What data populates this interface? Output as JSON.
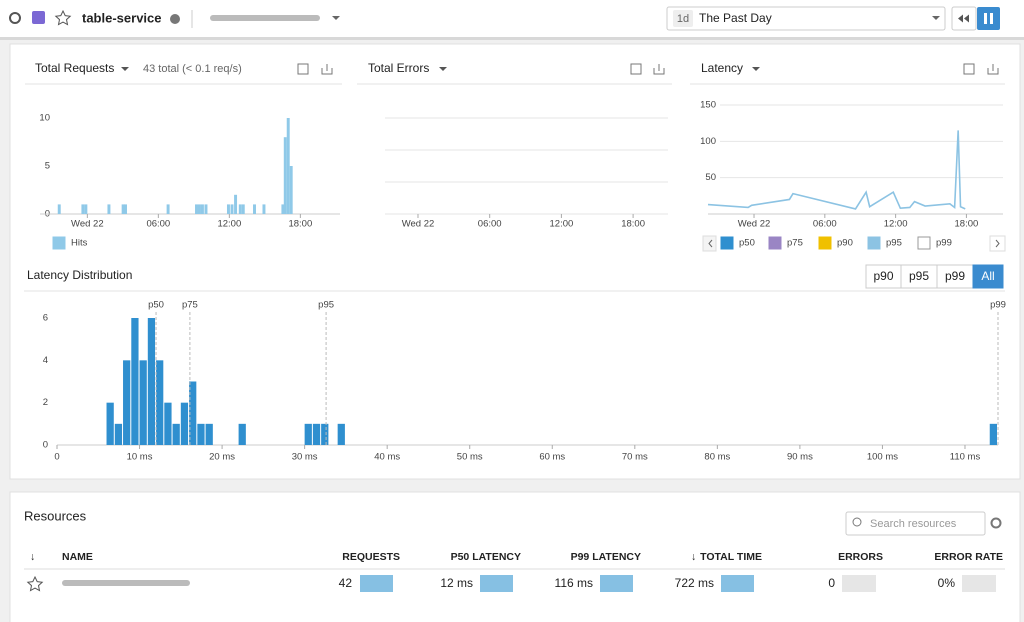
{
  "header": {
    "service": "table-service",
    "time_shortcut": "1d",
    "time_range": "The Past Day"
  },
  "charts": [
    {
      "type": "bar",
      "title": "Total Requests",
      "subtitle": "43 total (< 0.1 req/s)",
      "x": [
        -2.5,
        -0.5,
        -0.25,
        1.7,
        2.9,
        3.1,
        6.7,
        9.1,
        9.35,
        9.6,
        9.9,
        11.8,
        12.1,
        12.4,
        12.8,
        13.05,
        14.0,
        14.8,
        16.4,
        16.6,
        16.85,
        17.1
      ],
      "series": [
        {
          "name": "Hits",
          "color": "#8fc9e8",
          "values": [
            1,
            1,
            1,
            1,
            1,
            1,
            1,
            1,
            1,
            1,
            1,
            1,
            1,
            2,
            1,
            1,
            1,
            1,
            1,
            8,
            10,
            5
          ]
        }
      ],
      "xlim": [
        -4,
        21.35
      ],
      "xticks": [
        {
          "value": 0,
          "label": "Wed 22"
        },
        {
          "value": 6,
          "label": "06:00"
        },
        {
          "value": 12,
          "label": "12:00"
        },
        {
          "value": 18,
          "label": "18:00"
        }
      ],
      "ylim": [
        0,
        10
      ],
      "yticks": [
        0,
        5,
        10
      ],
      "grid": false
    },
    {
      "type": "bar",
      "title": "Total Errors",
      "xlim": [
        -2.76,
        20.92
      ],
      "xticks": [
        {
          "value": 0,
          "label": "Wed 22"
        },
        {
          "value": 6,
          "label": "06:00"
        },
        {
          "value": 12,
          "label": "12:00"
        },
        {
          "value": 18,
          "label": "18:00"
        }
      ]
    },
    {
      "type": "line",
      "title": "Latency",
      "x": [
        -3.9,
        -0.5,
        -0.2,
        3.0,
        3.3,
        8.6,
        9.5,
        9.8,
        11.8,
        12.4,
        13.2,
        13.6,
        14.5,
        16.6,
        17.0,
        17.3,
        17.5,
        17.9
      ],
      "series": [
        {
          "name": "p50",
          "color": "#2f8fcf"
        },
        {
          "name": "p75",
          "color": "#9a85c4"
        },
        {
          "name": "p90",
          "color": "#f0c000"
        },
        {
          "name": "p95",
          "color": "#8cc3e3",
          "values": [
            13,
            9,
            12,
            20,
            28,
            7,
            30,
            10,
            30,
            8,
            9,
            17,
            11,
            14,
            9,
            115,
            10,
            7
          ]
        },
        {
          "name": "p99",
          "color": "#ffffff"
        }
      ],
      "xlim": [
        -3.9,
        21.1
      ],
      "xticks": [
        {
          "value": 0,
          "label": "Wed 22"
        },
        {
          "value": 6,
          "label": "06:00"
        },
        {
          "value": 12,
          "label": "12:00"
        },
        {
          "value": 18,
          "label": "18:00"
        }
      ],
      "ylim": [
        0,
        150
      ],
      "yticks": [
        50,
        100,
        150
      ],
      "grid": true
    },
    {
      "type": "histogram",
      "title": "Latency Distribution",
      "x": [
        6,
        7,
        8,
        9,
        10,
        11,
        12,
        13,
        14,
        15,
        16,
        17,
        18,
        22,
        30,
        31,
        32,
        34,
        113
      ],
      "values": [
        2,
        1,
        4,
        6,
        4,
        6,
        4,
        2,
        1,
        2,
        3,
        1,
        1,
        1,
        1,
        1,
        1,
        1,
        1
      ],
      "color": "#2f8fcf",
      "xlim": [
        0,
        114
      ],
      "xticks": [
        0,
        {
          "value": 10,
          "label": "10 ms"
        },
        {
          "value": 20,
          "label": "20 ms"
        },
        {
          "value": 30,
          "label": "30 ms"
        },
        {
          "value": 40,
          "label": "40 ms"
        },
        {
          "value": 50,
          "label": "50 ms"
        },
        {
          "value": 60,
          "label": "60 ms"
        },
        {
          "value": 70,
          "label": "70 ms"
        },
        {
          "value": 80,
          "label": "80 ms"
        },
        {
          "value": 90,
          "label": "90 ms"
        },
        {
          "value": 100,
          "label": "100 ms"
        },
        {
          "value": 110,
          "label": "110 ms"
        }
      ],
      "ylim": [
        0,
        6
      ],
      "yticks": [
        0,
        2,
        4,
        6
      ],
      "markers": [
        {
          "value": 12,
          "label": "p50"
        },
        {
          "value": 16.1,
          "label": "p75"
        },
        {
          "value": 32.6,
          "label": "p95"
        },
        {
          "value": 114,
          "label": "p99"
        }
      ],
      "buttons": [
        "p90",
        "p95",
        "p99",
        "All"
      ],
      "active_button": 3
    }
  ],
  "resources": {
    "title": "Resources",
    "search_placeholder": "Search resources",
    "columns": [
      "NAME",
      "REQUESTS",
      "P50 LATENCY",
      "P99 LATENCY",
      "TOTAL TIME",
      "ERRORS",
      "ERROR RATE"
    ],
    "rows": [
      {
        "requests": 42,
        "p50_latency": "12 ms",
        "p99_latency": "116 ms",
        "total_time": "722 ms",
        "errors": 0,
        "error_rate": "0%"
      }
    ]
  }
}
